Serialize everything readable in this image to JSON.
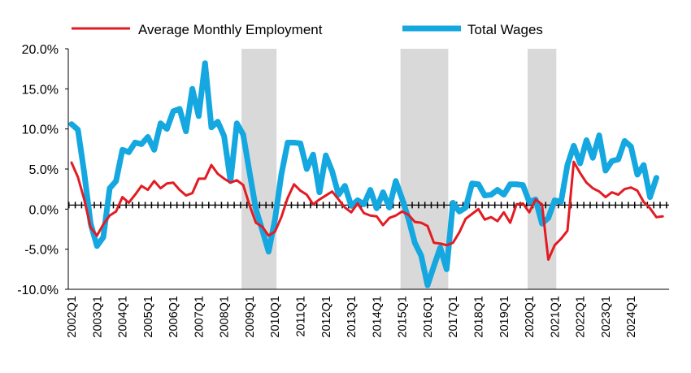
{
  "chart_data": {
    "type": "line",
    "title": "",
    "xlabel": "",
    "ylabel": "",
    "legend_position": "top",
    "ylim": [
      -10,
      20
    ],
    "y_ticks": [
      "20.0%",
      "15.0%",
      "10.0%",
      "5.0%",
      "0.0%",
      "-5.0%",
      "-10.0%"
    ],
    "y_tick_values": [
      20,
      15,
      10,
      5,
      0,
      -5,
      -10
    ],
    "x_tick_labels": [
      "2002Q1",
      "2003Q1",
      "2004Q1",
      "2005Q1",
      "2006Q1",
      "2007Q1",
      "2008Q1",
      "2009Q1",
      "2010Q1",
      "2011Q1",
      "2012Q1",
      "2013Q1",
      "2014Q1",
      "2015Q1",
      "2016Q1",
      "2017Q1",
      "2018Q1",
      "2019Q1",
      "2020Q1",
      "2021Q1",
      "2022Q1",
      "2023Q1",
      "2024Q1"
    ],
    "x_start": "2002Q1",
    "recessions": [
      [
        "2008Q4",
        "2010Q1"
      ],
      [
        "2015Q1",
        "2016Q4"
      ],
      [
        "2020Q1",
        "2021Q1"
      ]
    ],
    "reference_line": 0.5,
    "series": [
      {
        "name": "Average Monthly Employment",
        "color": "#e31b23",
        "values": [
          5.8,
          4.0,
          1.2,
          -2.3,
          -3.3,
          -1.9,
          -0.8,
          -0.3,
          1.5,
          0.8,
          1.8,
          2.9,
          2.4,
          3.5,
          2.6,
          3.2,
          3.3,
          2.4,
          1.7,
          2.0,
          3.8,
          3.8,
          5.5,
          4.4,
          3.8,
          3.3,
          3.6,
          3.0,
          0.5,
          -1.7,
          -2.2,
          -3.3,
          -2.8,
          -1.0,
          1.4,
          3.1,
          2.3,
          1.8,
          0.6,
          1.2,
          1.7,
          2.2,
          1.2,
          0.2,
          -0.4,
          0.7,
          -0.5,
          -0.8,
          -0.9,
          -2.0,
          -1.1,
          -0.8,
          -0.3,
          -0.7,
          -1.6,
          -1.7,
          -2.1,
          -4.2,
          -4.3,
          -4.5,
          -4.2,
          -2.9,
          -1.2,
          -0.6,
          0.0,
          -1.3,
          -1.0,
          -1.5,
          -0.4,
          -1.7,
          0.6,
          0.7,
          -0.4,
          1.2,
          0.6,
          -6.3,
          -4.5,
          -3.7,
          -2.7,
          5.9,
          4.5,
          3.3,
          2.6,
          2.2,
          1.5,
          2.1,
          1.8,
          2.5,
          2.7,
          2.3,
          0.9,
          0.1,
          -1.0,
          -0.9
        ]
      },
      {
        "name": "Total Wages",
        "color": "#14a7e0",
        "values": [
          10.6,
          9.9,
          4.5,
          -1.8,
          -4.6,
          -3.5,
          2.6,
          3.5,
          7.4,
          7.1,
          8.3,
          8.1,
          9.0,
          7.4,
          10.7,
          10.0,
          12.2,
          12.5,
          9.7,
          15.0,
          11.6,
          18.2,
          10.2,
          10.9,
          9.1,
          3.5,
          10.7,
          9.3,
          4.6,
          0.0,
          -2.6,
          -5.3,
          -1.3,
          4.3,
          8.3,
          8.3,
          8.2,
          5.0,
          6.8,
          2.1,
          6.7,
          4.7,
          1.8,
          2.9,
          0.4,
          1.1,
          0.6,
          2.4,
          0.1,
          2.1,
          0.2,
          3.5,
          1.3,
          -1.2,
          -4.2,
          -5.8,
          -9.5,
          -7.1,
          -4.8,
          -7.5,
          0.8,
          -0.3,
          0.2,
          3.2,
          3.1,
          1.7,
          1.8,
          2.4,
          1.8,
          3.1,
          3.1,
          3.0,
          0.9,
          1.2,
          -1.8,
          -1.1,
          1.1,
          0.9,
          5.5,
          7.9,
          5.7,
          8.6,
          6.4,
          9.2,
          4.8,
          6.0,
          6.2,
          8.5,
          7.8,
          4.3,
          5.5,
          1.5,
          3.9
        ]
      }
    ]
  }
}
